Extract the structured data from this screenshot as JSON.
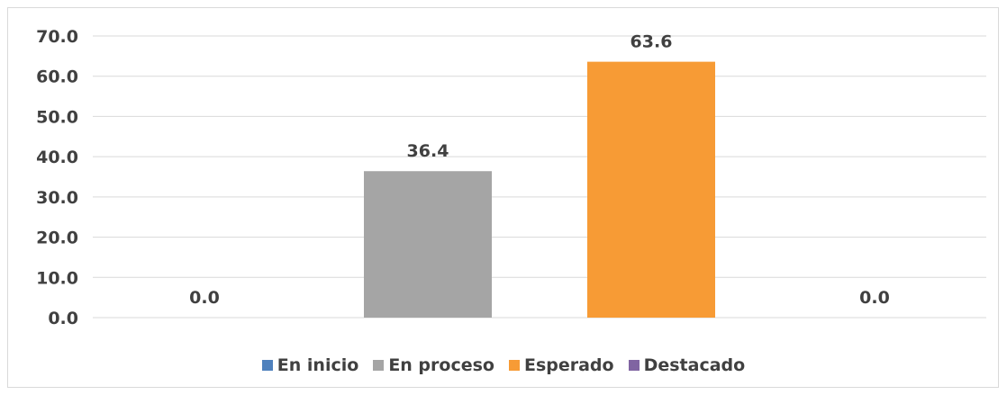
{
  "chart_data": {
    "type": "bar",
    "categories": [
      "En inicio",
      "En proceso",
      "Esperado",
      "Destacado"
    ],
    "values": [
      0.0,
      36.4,
      63.6,
      0.0
    ],
    "data_labels": [
      "0.0",
      "36.4",
      "63.6",
      "0.0"
    ],
    "ylim": [
      0,
      70
    ],
    "yticks": [
      "0.0",
      "10.0",
      "20.0",
      "30.0",
      "40.0",
      "50.0",
      "60.0",
      "70.0"
    ],
    "grid": true,
    "legend_position": "bottom",
    "title": "",
    "xlabel": "",
    "ylabel": "",
    "series_colors": [
      "#4f81bd",
      "#a5a5a5",
      "#f79b35",
      "#8064a2"
    ]
  },
  "legend": {
    "items": [
      {
        "label": "En inicio",
        "color": "#4f81bd"
      },
      {
        "label": "En proceso",
        "color": "#a5a5a5"
      },
      {
        "label": "Esperado",
        "color": "#f79b35"
      },
      {
        "label": "Destacado",
        "color": "#8064a2"
      }
    ]
  }
}
